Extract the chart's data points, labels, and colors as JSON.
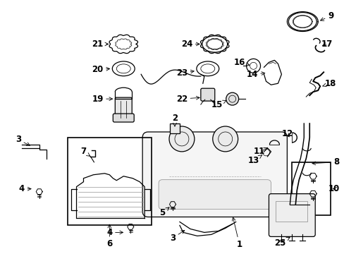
{
  "bg_color": "#ffffff",
  "line_color": "#000000",
  "fig_width": 4.89,
  "fig_height": 3.6,
  "dpi": 100,
  "label_fontsize": 8.5,
  "arrow_lw": 0.6,
  "draw_lw": 0.9
}
